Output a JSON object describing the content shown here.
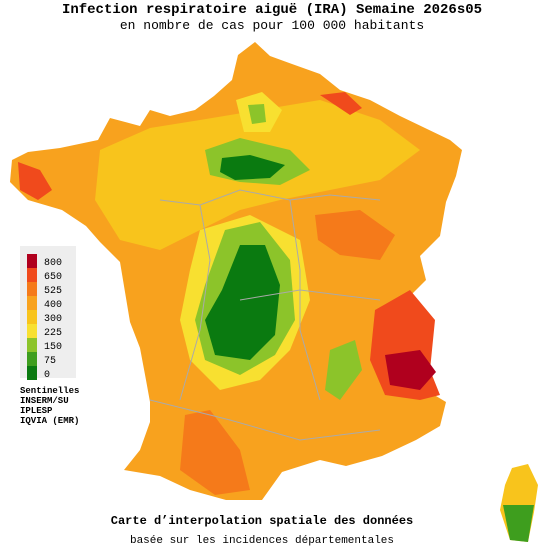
{
  "header": {
    "title": "Infection respiratoire aiguë (IRA) Semaine 2026s05",
    "subtitle": "en nombre de cas pour 100 000 habitants"
  },
  "legend": [
    {
      "value": 800,
      "color": "#b0001e"
    },
    {
      "value": 650,
      "color": "#f04a1c"
    },
    {
      "value": 525,
      "color": "#f57a1a"
    },
    {
      "value": 400,
      "color": "#f8a21e"
    },
    {
      "value": 300,
      "color": "#f8c41c"
    },
    {
      "value": 225,
      "color": "#f8e030"
    },
    {
      "value": 150,
      "color": "#8cc42a"
    },
    {
      "value": 75,
      "color": "#3e9e1e"
    },
    {
      "value": 0,
      "color": "#0a7a10"
    }
  ],
  "sources": [
    "Sentinelles",
    "INSERM/SU",
    "IPLESP",
    "IQVIA (EMR)"
  ],
  "footer": {
    "title": "Carte d’interpolation spatiale des données",
    "note": "basée sur les incidences départementales"
  }
}
